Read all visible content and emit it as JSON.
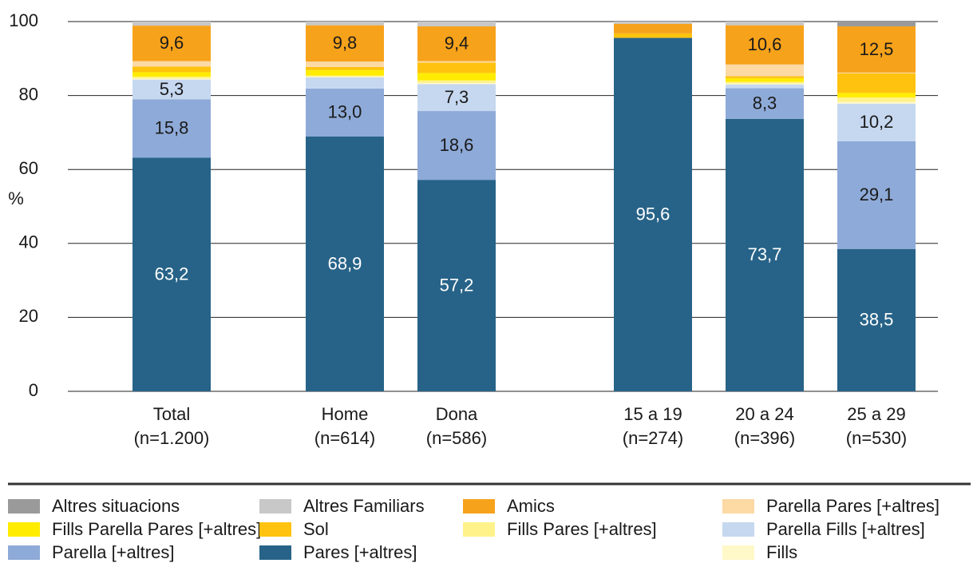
{
  "chart_data": {
    "type": "stacked_bar",
    "ylabel": "%",
    "categories": [
      "Total",
      "Home",
      "Dona",
      "15 a 19",
      "20 a 24",
      "25 a 29"
    ],
    "category_notes": [
      "(n=1.200)",
      "(n=614)",
      "(n=586)",
      "(n=274)",
      "(n=396)",
      "(n=530)"
    ],
    "ylim": [
      0,
      100
    ],
    "yticks": [
      0,
      20,
      40,
      60,
      80,
      100
    ],
    "grid": true,
    "series": [
      {
        "name": "Pares [+altres]",
        "color": "#276388",
        "values": [
          63.2,
          68.9,
          57.2,
          95.6,
          73.7,
          38.5
        ],
        "value_labels": [
          "63,2",
          "68,9",
          "57,2",
          "95,6",
          "73,7",
          "38,5"
        ]
      },
      {
        "name": "Parella [+altres]",
        "color": "#8eaad8",
        "values": [
          15.8,
          13.0,
          18.6,
          0,
          8.3,
          29.1
        ],
        "value_labels": [
          "15,8",
          "13,0",
          "18,6",
          null,
          "8,3",
          "29,1"
        ]
      },
      {
        "name": "Parella Fills [+altres]",
        "color": "#c6d8f0",
        "values": [
          5.3,
          3.0,
          7.3,
          0,
          1.0,
          10.2
        ],
        "value_labels": [
          "5,3",
          null,
          "7,3",
          null,
          null,
          "10,2"
        ]
      },
      {
        "name": "Fills",
        "color": "#fff8c8",
        "values": [
          0.3,
          0.2,
          0.3,
          0,
          0.2,
          0.5
        ]
      },
      {
        "name": "Fills Pares [+altres]",
        "color": "#fff28a",
        "values": [
          0.5,
          0.3,
          0.7,
          0,
          0.5,
          1.2
        ]
      },
      {
        "name": "Fills Parella Pares [+altres]",
        "color": "#ffec00",
        "values": [
          1.2,
          1.5,
          2.0,
          0,
          1.0,
          1.2
        ]
      },
      {
        "name": "Sol",
        "color": "#ffc20e",
        "values": [
          1.5,
          0.8,
          2.8,
          1.2,
          0.5,
          5.3
        ]
      },
      {
        "name": "Parella Pares [+altres]",
        "color": "#fdd9a4",
        "values": [
          1.5,
          1.5,
          0.4,
          0,
          3.2,
          0.2
        ]
      },
      {
        "name": "Amics",
        "color": "#f7a21b",
        "values": [
          9.6,
          9.8,
          9.4,
          2.6,
          10.6,
          12.5
        ],
        "value_labels": [
          "9,6",
          "9,8",
          "9,4",
          null,
          "10,6",
          "12,5"
        ]
      },
      {
        "name": "Altres Familiars",
        "color": "#c8c8c8",
        "values": [
          1.1,
          1.0,
          1.3,
          0.6,
          1.0,
          0
        ]
      },
      {
        "name": "Altres situacions",
        "color": "#9a9a9a",
        "values": [
          0,
          0,
          0,
          0,
          0,
          1.3
        ]
      }
    ]
  }
}
